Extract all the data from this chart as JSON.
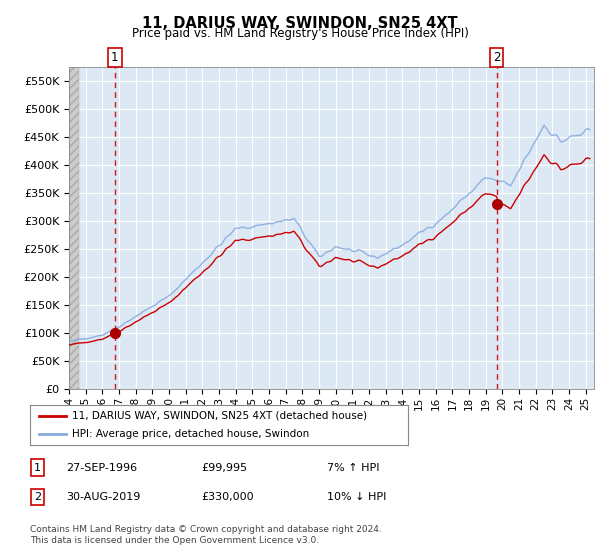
{
  "title": "11, DARIUS WAY, SWINDON, SN25 4XT",
  "subtitle": "Price paid vs. HM Land Registry's House Price Index (HPI)",
  "ylim": [
    0,
    575000
  ],
  "yticks": [
    0,
    50000,
    100000,
    150000,
    200000,
    250000,
    300000,
    350000,
    400000,
    450000,
    500000,
    550000
  ],
  "ytick_labels": [
    "£0",
    "£50K",
    "£100K",
    "£150K",
    "£200K",
    "£250K",
    "£300K",
    "£350K",
    "£400K",
    "£450K",
    "£500K",
    "£550K"
  ],
  "plot_bg_color": "#dce9f5",
  "grid_color": "#ffffff",
  "sale1_year": 1996.75,
  "sale1_price": 99995,
  "sale2_year": 2019.667,
  "sale2_price": 330000,
  "legend_line1": "11, DARIUS WAY, SWINDON, SN25 4XT (detached house)",
  "legend_line2": "HPI: Average price, detached house, Swindon",
  "table_row1_num": "1",
  "table_row1_date": "27-SEP-1996",
  "table_row1_price": "£99,995",
  "table_row1_hpi": "7% ↑ HPI",
  "table_row2_num": "2",
  "table_row2_date": "30-AUG-2019",
  "table_row2_price": "£330,000",
  "table_row2_hpi": "10% ↓ HPI",
  "footer": "Contains HM Land Registry data © Crown copyright and database right 2024.\nThis data is licensed under the Open Government Licence v3.0.",
  "line_color_red": "#cc0000",
  "line_color_blue": "#88aadd",
  "dot_color": "#aa0000",
  "hatch_bg": "#d8d8d8",
  "xlim_left": 1994.0,
  "xlim_right": 2025.5
}
